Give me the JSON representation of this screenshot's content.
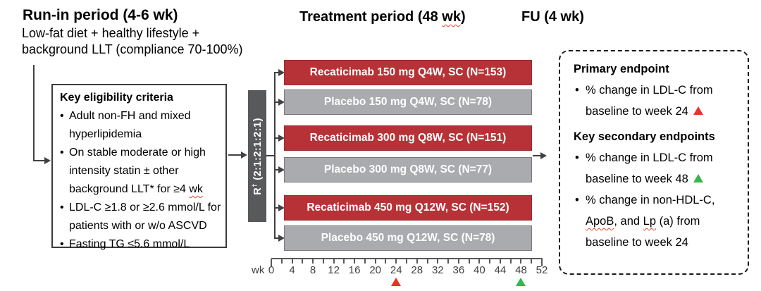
{
  "colors": {
    "arm_red": "#b73237",
    "arm_gray": "#a9abae",
    "rand_box": "#58595b",
    "marker_red": "#ee3124",
    "marker_green": "#39b54a"
  },
  "runin": {
    "title": "Run-in period (4-6 wk)",
    "subtitle_line1": "Low-fat diet + healthy lifestyle +",
    "subtitle_line2": "background LLT (compliance 70-100%)"
  },
  "treatment": {
    "title_pre": "Treatment period (48 ",
    "title_wavy": "wk",
    "title_post": ")"
  },
  "fu": {
    "title": "FU (4 wk)"
  },
  "eligibility": {
    "title": "Key eligibility criteria",
    "items": [
      [
        {
          "text": "Adult non-FH and mixed hyperlipidemia"
        }
      ],
      [
        {
          "text": "On stable moderate or high intensity statin ± other background LLT* for ≥4 "
        },
        {
          "text": "wk",
          "wavy": true
        }
      ],
      [
        {
          "text": "LDL-C ≥1.8 or ≥2.6 mmol/L for patients with or w/o ASCVD"
        }
      ],
      [
        {
          "text": "Fasting TG ≤5.6 mmol/L"
        }
      ]
    ]
  },
  "randomization": {
    "r": "R",
    "dagger": "†",
    "ratio": " (2:1:2:1:2:1)"
  },
  "arms": [
    {
      "label": "Recaticimab 150 mg Q4W, SC (N=153)",
      "type": "recaticimab"
    },
    {
      "label": "Placebo 150 mg Q4W, SC (N=78)",
      "type": "placebo"
    },
    {
      "label": "Recaticimab 300 mg Q8W, SC (N=151)",
      "type": "recaticimab"
    },
    {
      "label": "Placebo 300 mg Q8W, SC (N=77)",
      "type": "placebo"
    },
    {
      "label": "Recaticimab 450 mg Q12W, SC (N=152)",
      "type": "recaticimab"
    },
    {
      "label": "Placebo 450 mg Q12W, SC (N=78)",
      "type": "placebo"
    }
  ],
  "axis": {
    "unit_label": "wk",
    "max_week": 52,
    "tick_step": 2,
    "labels": [
      0,
      4,
      8,
      12,
      16,
      20,
      24,
      28,
      32,
      36,
      40,
      44,
      48,
      52
    ],
    "markers": [
      {
        "week": 24,
        "color_key": "marker_red"
      },
      {
        "week": 48,
        "color_key": "marker_green"
      }
    ]
  },
  "endpoints": {
    "primary_title": "Primary endpoint",
    "primary_items": [
      [
        {
          "text": "% change in LDL-C from baseline to week 24 "
        },
        {
          "triangle": "marker_red"
        }
      ]
    ],
    "secondary_title": "Key secondary endpoints",
    "secondary_items": [
      [
        {
          "text": "% change in LDL-C from baseline to week 48 "
        },
        {
          "triangle": "marker_green"
        }
      ],
      [
        {
          "text": "% change in non-HDL-C, "
        },
        {
          "text": "ApoB",
          "wavy": true
        },
        {
          "text": ", and "
        },
        {
          "text": "Lp",
          "wavy": true
        },
        {
          "text": " (a) from baseline to week 24"
        }
      ]
    ]
  }
}
